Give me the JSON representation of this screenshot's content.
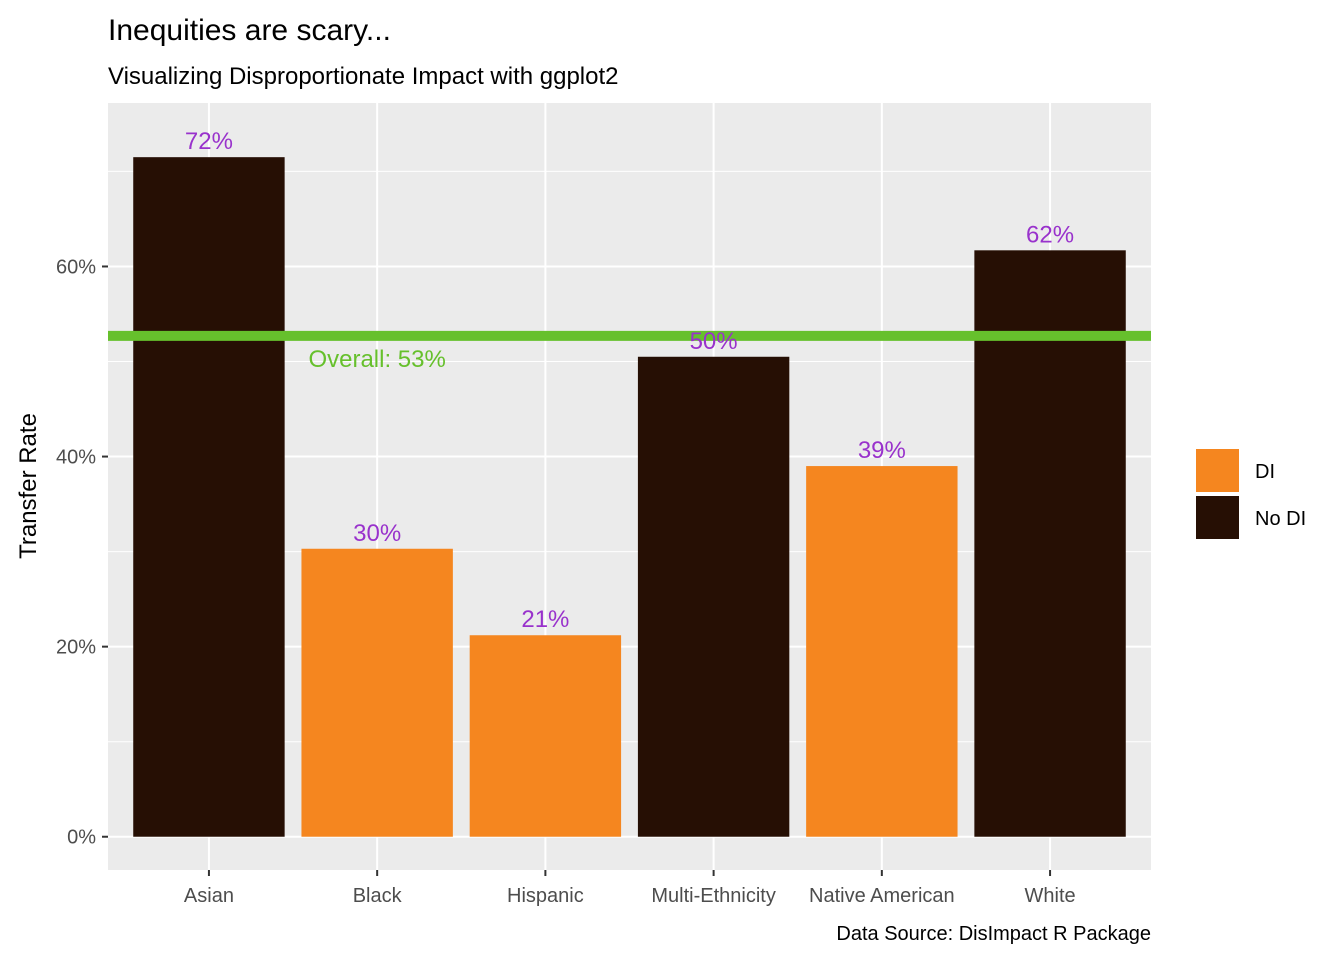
{
  "chart_data": {
    "type": "bar",
    "title": "Inequities are scary...",
    "subtitle": "Visualizing Disproportionate Impact with ggplot2",
    "xlabel": "",
    "ylabel": "Transfer Rate",
    "caption": "Data Source: DisImpact R Package",
    "categories": [
      "Asian",
      "Black",
      "Hispanic",
      "Multi-Ethnicity",
      "Native American",
      "White"
    ],
    "values": [
      0.715,
      0.303,
      0.212,
      0.505,
      0.39,
      0.617
    ],
    "value_labels": [
      "72%",
      "30%",
      "21%",
      "50%",
      "39%",
      "62%"
    ],
    "groups": [
      "No DI",
      "DI",
      "DI",
      "No DI",
      "DI",
      "No DI"
    ],
    "ylim": [
      -0.035,
      0.772
    ],
    "y_ticks": [
      0,
      0.2,
      0.4,
      0.6
    ],
    "y_tick_labels": [
      "0%",
      "20%",
      "40%",
      "60%"
    ],
    "reference_line": {
      "value": 0.527,
      "label": "Overall: 53%",
      "color": "#66c02c"
    },
    "legend": {
      "position": "right",
      "entries": [
        {
          "label": "DI",
          "color": "#f5861f"
        },
        {
          "label": "No DI",
          "color": "#260f04"
        }
      ]
    },
    "colors": {
      "DI": "#f5861f",
      "No DI": "#260f04",
      "label_text": "#9932cc",
      "panel": "#ebebeb",
      "grid": "#ffffff"
    },
    "grid": true
  }
}
